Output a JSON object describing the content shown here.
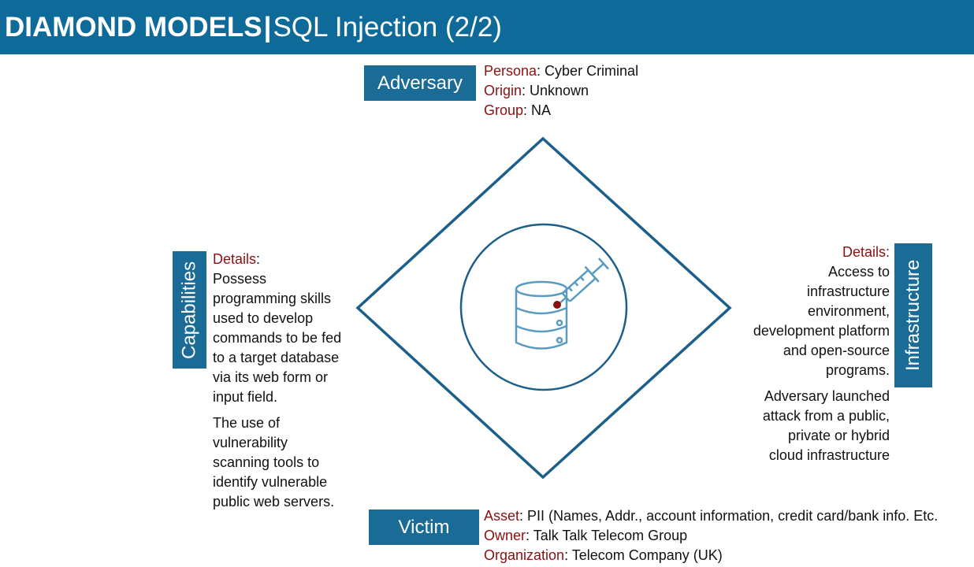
{
  "header": {
    "title_bold": "DIAMOND MODELS",
    "separator": "|",
    "title_light": "SQL Injection (2/2)"
  },
  "adversary": {
    "label": "Adversary",
    "rows": [
      {
        "key": "Persona",
        "value": ": Cyber Criminal"
      },
      {
        "key": "Origin",
        "value": ": Unknown"
      },
      {
        "key": "Group",
        "value": ": NA"
      }
    ]
  },
  "capabilities": {
    "label": "Capabilities",
    "details_key": "Details",
    "details_colon": ":",
    "paragraphs": [
      "Possess programming skills used to develop commands to be fed to a target database via its web form or input field.",
      "The use of vulnerability scanning tools to identify vulnerable public web servers."
    ]
  },
  "infrastructure": {
    "label": "Infrastructure",
    "details_key": "Details",
    "details_colon": ":",
    "paragraphs": [
      "Access to infrastructure environment, development platform and open-source programs.",
      "Adversary launched attack from a public, private or hybrid cloud infrastructure"
    ]
  },
  "victim": {
    "label": "Victim",
    "rows": [
      {
        "key": "Asset",
        "value": ": PII (Names, Addr., account information, credit card/bank info. Etc."
      },
      {
        "key": "Owner",
        "value": ": Talk Talk Telecom Group"
      },
      {
        "key": "Organization",
        "value": ": Telecom Company (UK)"
      }
    ]
  },
  "center_icon": "database-syringe-icon",
  "colors": {
    "header_bg": "#0d6a99",
    "label_bg": "#1a6b96",
    "diamond_stroke": "#1b5f8a",
    "icon_stroke": "#5a9bc0",
    "key_text": "#8b1010"
  }
}
